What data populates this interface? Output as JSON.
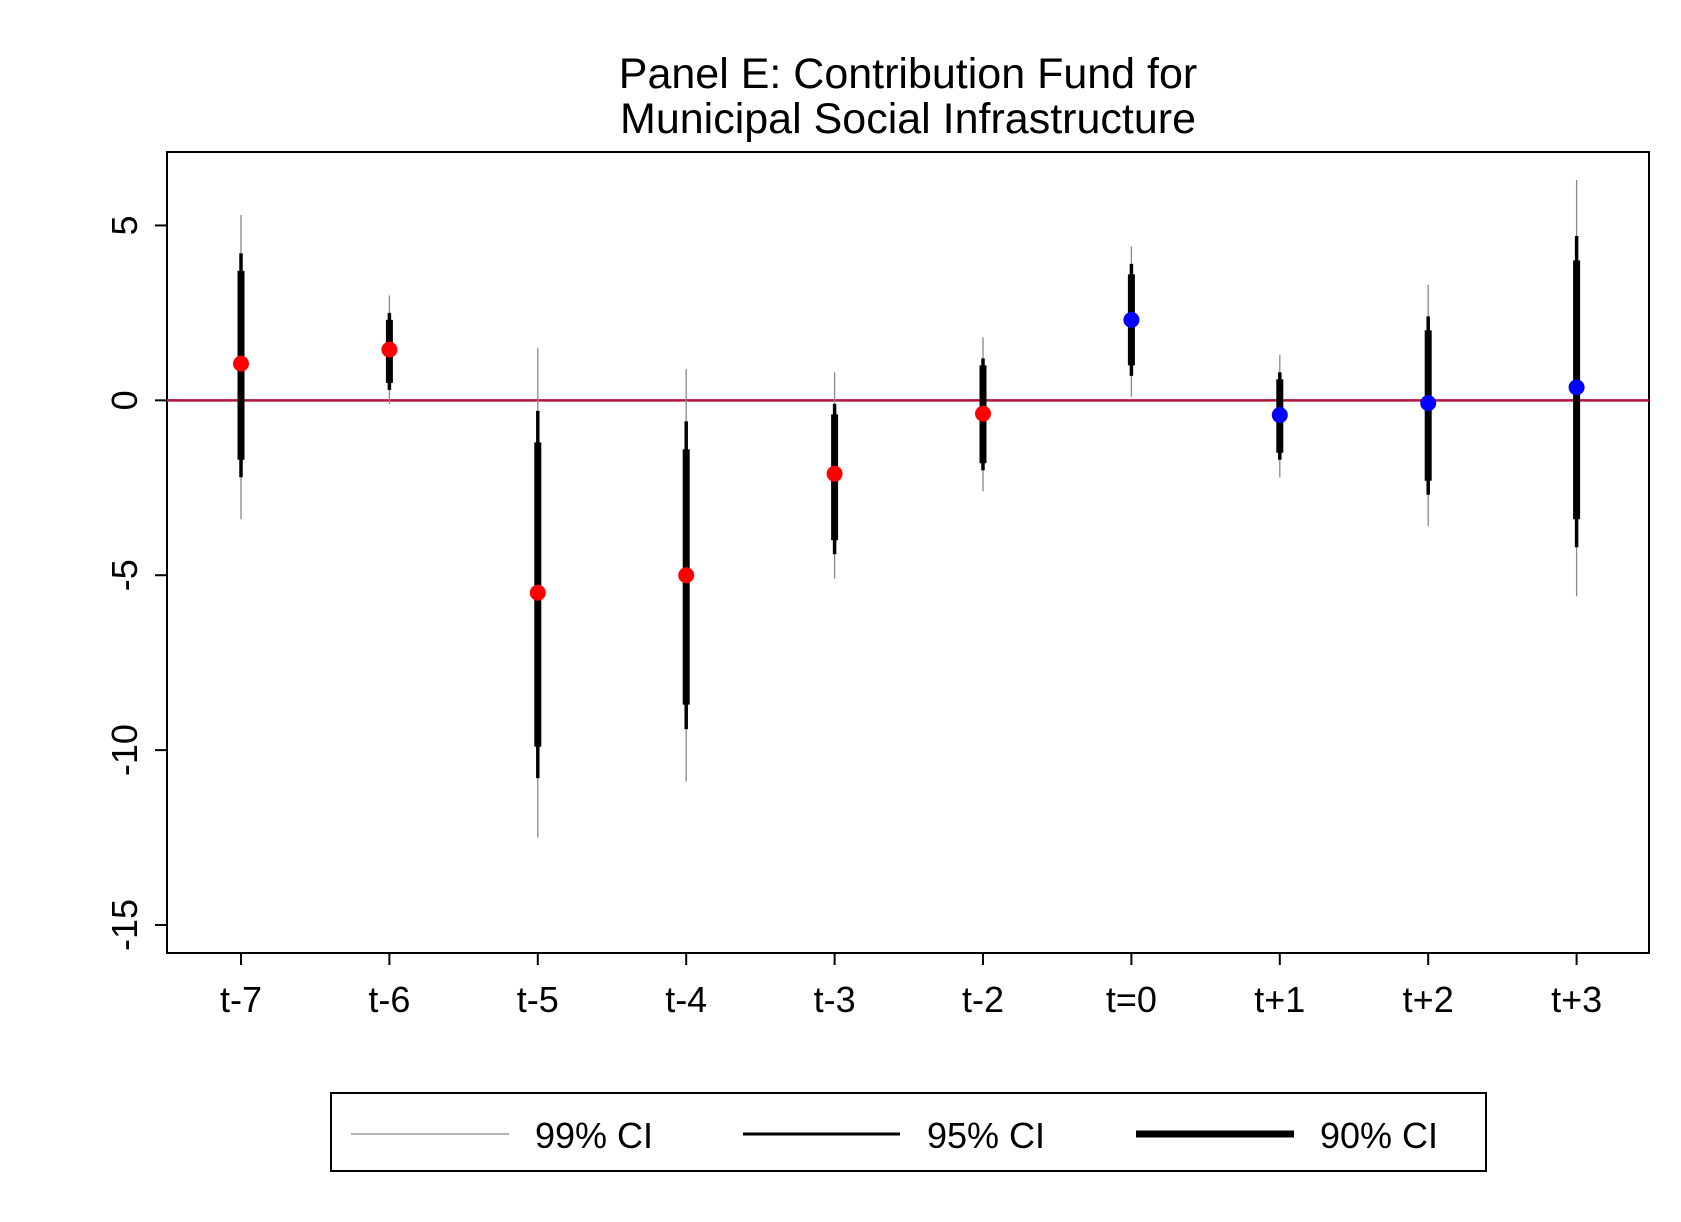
{
  "chart_data": {
    "type": "scatter",
    "title_lines": [
      "Panel E: Contribution Fund for",
      "Municipal Social Infrastructure"
    ],
    "xlabel": "",
    "ylabel": "",
    "ylim": [
      -15.8,
      7.1
    ],
    "yticks": [
      5,
      0,
      -5,
      -10,
      -15
    ],
    "ytick_labels": [
      "5",
      "0",
      "-5",
      "-10",
      "-15"
    ],
    "reference_line": {
      "y": 0,
      "color": "#b5123b"
    },
    "categories": [
      "t-7",
      "t-6",
      "t-5",
      "t-4",
      "t-3",
      "t-2",
      "t=0",
      "t+1",
      "t+2",
      "t+3"
    ],
    "estimates": [
      1.05,
      1.45,
      -5.5,
      -5.0,
      -2.1,
      -0.38,
      2.3,
      -0.42,
      -0.08,
      0.37
    ],
    "point_colors": [
      "#ff0000",
      "#ff0000",
      "#ff0000",
      "#ff0000",
      "#ff0000",
      "#ff0000",
      "#0000ff",
      "#0000ff",
      "#0000ff",
      "#0000ff"
    ],
    "ci99": [
      [
        -3.4,
        5.3
      ],
      [
        -0.1,
        3.0
      ],
      [
        -12.5,
        1.5
      ],
      [
        -10.9,
        0.9
      ],
      [
        -5.1,
        0.8
      ],
      [
        -2.6,
        1.8
      ],
      [
        0.1,
        4.4
      ],
      [
        -2.2,
        1.3
      ],
      [
        -3.6,
        3.3
      ],
      [
        -5.6,
        6.3
      ]
    ],
    "ci95": [
      [
        -2.2,
        4.2
      ],
      [
        0.3,
        2.5
      ],
      [
        -10.8,
        -0.3
      ],
      [
        -9.4,
        -0.6
      ],
      [
        -4.4,
        -0.1
      ],
      [
        -2.0,
        1.2
      ],
      [
        0.7,
        3.9
      ],
      [
        -1.7,
        0.8
      ],
      [
        -2.7,
        2.4
      ],
      [
        -4.2,
        4.7
      ]
    ],
    "ci90": [
      [
        -1.7,
        3.7
      ],
      [
        0.5,
        2.3
      ],
      [
        -9.9,
        -1.2
      ],
      [
        -8.7,
        -1.4
      ],
      [
        -4.0,
        -0.4
      ],
      [
        -1.8,
        1.0
      ],
      [
        1.0,
        3.6
      ],
      [
        -1.5,
        0.6
      ],
      [
        -2.3,
        2.0
      ],
      [
        -3.4,
        4.0
      ]
    ],
    "legend": {
      "placement": "bottom-center",
      "entries": [
        {
          "label": "99% CI",
          "color": "#888888"
        },
        {
          "label": "95% CI",
          "color": "#000000"
        },
        {
          "label": "90% CI",
          "color": "#000000"
        }
      ]
    }
  }
}
